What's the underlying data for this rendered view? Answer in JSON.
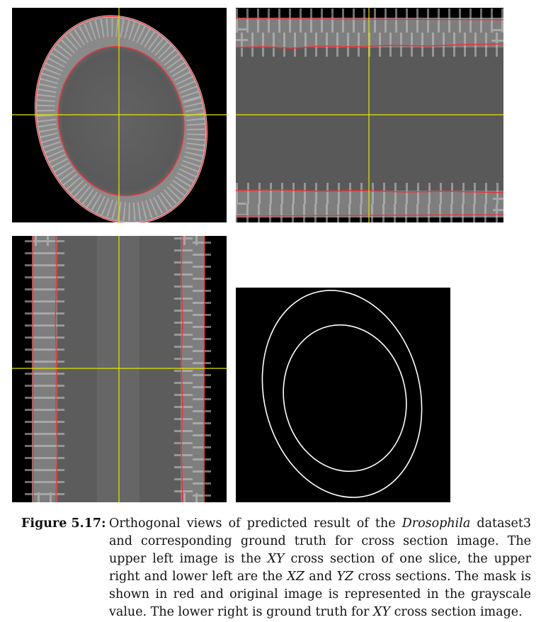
{
  "figure": {
    "label": "Figure 5.17:",
    "caption": {
      "part1": "Orthogonal views of predicted result of the ",
      "species": "Drosophila",
      "part2": " dataset3 and corresponding ground truth for cross section image.  The upper left image is the ",
      "xy1": "XY",
      "part3": " cross section of one slice, the upper right and lower left are the ",
      "xz": "XZ",
      "part4": " and ",
      "yz": "YZ",
      "part5": " cross sections. The mask is shown in red and original image is represented in the grayscale value. The lower right is ground truth for ",
      "xy2": "XY",
      "part6": " cross section image."
    }
  },
  "colors": {
    "mask": "#e8343a",
    "crosshair": "#e6e600",
    "background": "#000000",
    "tissue": "#5e5e5e",
    "ground_truth_contour": "#ffffff"
  }
}
